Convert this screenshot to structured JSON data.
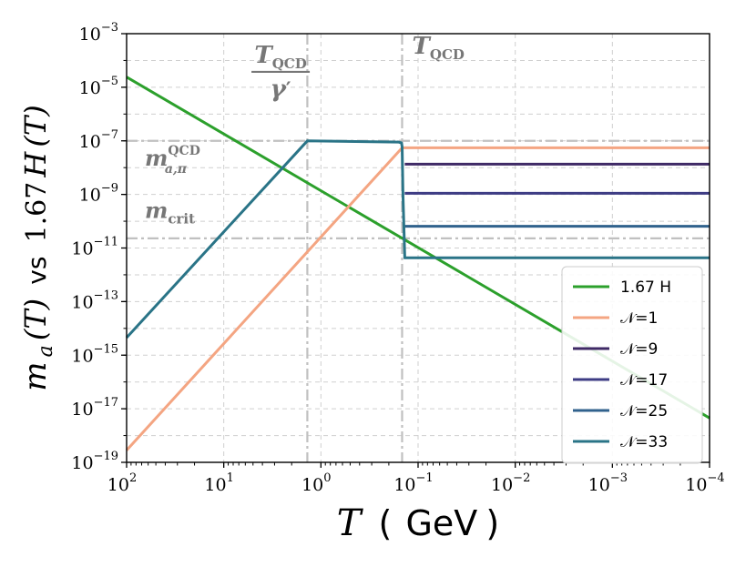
{
  "chart_data": {
    "type": "line",
    "xscale": "log",
    "yscale": "log",
    "xaxis_reversed": true,
    "xlim": [
      100,
      0.0001
    ],
    "ylim": [
      1e-19,
      0.001
    ],
    "grid": true,
    "xlabel": {
      "var": "T",
      "open": "(",
      "unit": "GeV",
      "close": ")"
    },
    "ylabel": {
      "lhs": "m",
      "lhs_sub": "a",
      "lhs_arg": "(T)",
      "mid": "vs",
      "rhs": "1.67",
      "rhs_var": "H",
      "rhs_arg": "(T)"
    },
    "xticks": [
      {
        "value": 100,
        "base": "10",
        "exp": "2"
      },
      {
        "value": 10,
        "base": "10",
        "exp": "1"
      },
      {
        "value": 1,
        "base": "10",
        "exp": "0"
      },
      {
        "value": 0.1,
        "base": "10",
        "exp": "−1"
      },
      {
        "value": 0.01,
        "base": "10",
        "exp": "−2"
      },
      {
        "value": 0.001,
        "base": "10",
        "exp": "−3"
      },
      {
        "value": 0.0001,
        "base": "10",
        "exp": "−4"
      }
    ],
    "yticks": [
      {
        "value": 1e-19,
        "base": "10",
        "exp": "−19"
      },
      {
        "value": 1e-17,
        "base": "10",
        "exp": "−17"
      },
      {
        "value": 1e-15,
        "base": "10",
        "exp": "−15"
      },
      {
        "value": 1e-13,
        "base": "10",
        "exp": "−13"
      },
      {
        "value": 1e-11,
        "base": "10",
        "exp": "−11"
      },
      {
        "value": 1e-09,
        "base": "10",
        "exp": "−9"
      },
      {
        "value": 1e-07,
        "base": "10",
        "exp": "−7"
      },
      {
        "value": 1e-05,
        "base": "10",
        "exp": "−5"
      },
      {
        "value": 0.001,
        "base": "10",
        "exp": "−3"
      }
    ],
    "reference_lines": [
      {
        "orientation": "vertical",
        "value": 1.38,
        "style": "dash-dot",
        "color": "#c0c0c0"
      },
      {
        "orientation": "vertical",
        "value": 0.146,
        "style": "dash-dot",
        "color": "#c0c0c0"
      },
      {
        "orientation": "horizontal",
        "value": 1e-07,
        "style": "dash-dot",
        "color": "#c0c0c0"
      },
      {
        "orientation": "horizontal",
        "value": 2.3e-11,
        "style": "dash-dot",
        "color": "#c0c0c0"
      }
    ],
    "annotations": [
      {
        "id": "tqcd-gamma",
        "num_main": "T",
        "num_sub": "QCD",
        "den_main": "γ",
        "den_prime": "′",
        "x": 2.6,
        "y": 0.00018
      },
      {
        "id": "tqcd",
        "main": "T",
        "sub": "QCD",
        "x": 0.115,
        "y": 0.00018
      },
      {
        "id": "ma-qcd",
        "main": "m",
        "sub": "a,π",
        "sup": "QCD",
        "x": 65,
        "y": 1.2e-08
      },
      {
        "id": "mcrit",
        "main": "m",
        "sub": "crit",
        "x": 65,
        "y": 1.3e-10
      }
    ],
    "series": [
      {
        "name": "1.67 H",
        "color": "#2ca02c",
        "x": [
          100,
          0.0001
        ],
        "y": [
          2.4e-05,
          4.5e-18
        ]
      },
      {
        "name": "𝒩=1",
        "color": "#f4a582",
        "x": [
          100,
          0.146,
          0.137,
          0.0001
        ],
        "y": [
          2.8e-19,
          5.5e-08,
          5.5e-08,
          5.5e-08
        ]
      },
      {
        "name": "𝒩=9",
        "color": "#3f2a66",
        "x": [
          0.137,
          0.0001
        ],
        "y": [
          1.35e-08,
          1.35e-08
        ]
      },
      {
        "name": "𝒩=17",
        "color": "#3e3c84",
        "x": [
          0.137,
          0.0001
        ],
        "y": [
          1.1e-09,
          1.1e-09
        ]
      },
      {
        "name": "𝒩=25",
        "color": "#31628d",
        "x": [
          0.137,
          0.0001
        ],
        "y": [
          6.5e-11,
          6.5e-11
        ]
      },
      {
        "name": "𝒩=33",
        "color": "#2a7487",
        "x": [
          100,
          1.38,
          0.16,
          0.148,
          0.146,
          0.143,
          0.137,
          0.0001
        ],
        "y": [
          4.5e-15,
          1e-07,
          9e-08,
          8.4e-08,
          6e-08,
          1e-09,
          4.3e-12,
          4.3e-12
        ]
      }
    ],
    "legend": {
      "position": "lower right",
      "entries": [
        "1.67 H",
        "𝒩=1",
        "𝒩=9",
        "𝒩=17",
        "𝒩=25",
        "𝒩=33"
      ]
    }
  }
}
